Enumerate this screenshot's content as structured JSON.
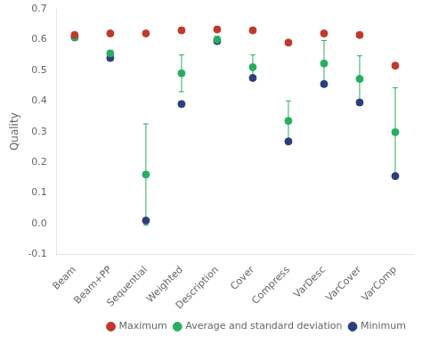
{
  "chart_data": {
    "type": "scatter",
    "categories": [
      "Beam",
      "Beam+PP",
      "Sequential",
      "Weighted",
      "Description",
      "Cover",
      "Compress",
      "VarDesc",
      "VarCover",
      "VarComp"
    ],
    "series": [
      {
        "name": "Maximum",
        "color": "#c0392b",
        "marker": "circle",
        "values": [
          0.615,
          0.62,
          0.62,
          0.63,
          0.633,
          0.63,
          0.59,
          0.62,
          0.615,
          0.515
        ]
      },
      {
        "name": "Average and standard deviation",
        "color": "#27ae60",
        "marker": "circle",
        "values": [
          0.608,
          0.555,
          0.16,
          0.49,
          0.6,
          0.51,
          0.335,
          0.522,
          0.472,
          0.298
        ],
        "error": [
          0.008,
          0.01,
          0.165,
          0.06,
          0.01,
          0.04,
          0.065,
          0.075,
          0.075,
          0.145
        ]
      },
      {
        "name": "Minimum",
        "color": "#2c3e7a",
        "marker": "circle",
        "values": [
          0.607,
          0.54,
          0.01,
          0.39,
          0.595,
          0.475,
          0.268,
          0.455,
          0.395,
          0.155
        ]
      }
    ],
    "ylabel": "Quality",
    "ylim": [
      -0.1,
      0.7
    ],
    "yticks": [
      -0.1,
      {
        "value": 0.0,
        "label": "0.0"
      },
      0.1,
      0.2,
      0.3,
      0.4,
      0.5,
      0.6,
      0.7
    ],
    "grid": false,
    "legend": "lower right"
  }
}
